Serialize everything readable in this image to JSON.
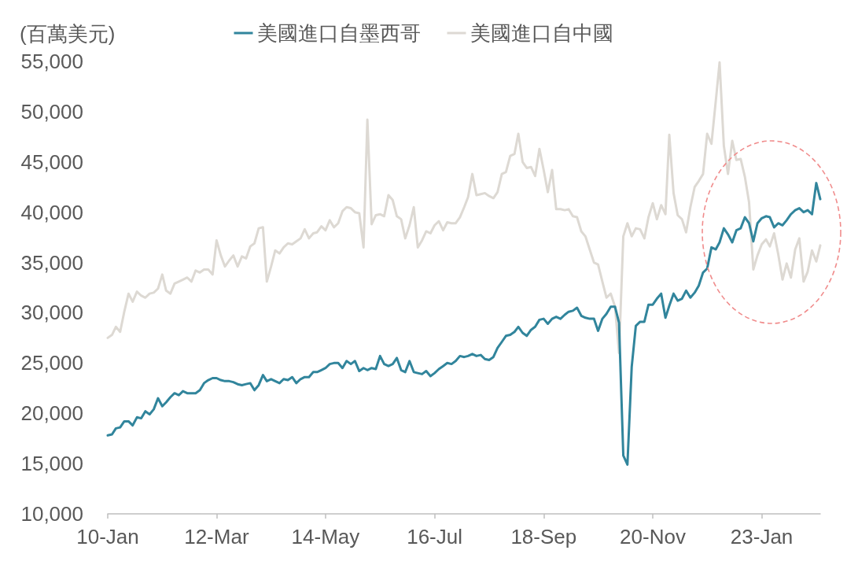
{
  "chart_data": {
    "type": "line",
    "ylabel": "(百萬美元)",
    "x": [
      "2010-01",
      "2010-02",
      "2010-03",
      "2010-04",
      "2010-05",
      "2010-06",
      "2010-07",
      "2010-08",
      "2010-09",
      "2010-10",
      "2010-11",
      "2010-12",
      "2011-01",
      "2011-02",
      "2011-03",
      "2011-04",
      "2011-05",
      "2011-06",
      "2011-07",
      "2011-08",
      "2011-09",
      "2011-10",
      "2011-11",
      "2011-12",
      "2012-01",
      "2012-02",
      "2012-03",
      "2012-04",
      "2012-05",
      "2012-06",
      "2012-07",
      "2012-08",
      "2012-09",
      "2012-10",
      "2012-11",
      "2012-12",
      "2013-01",
      "2013-02",
      "2013-03",
      "2013-04",
      "2013-05",
      "2013-06",
      "2013-07",
      "2013-08",
      "2013-09",
      "2013-10",
      "2013-11",
      "2013-12",
      "2014-01",
      "2014-02",
      "2014-03",
      "2014-04",
      "2014-05",
      "2014-06",
      "2014-07",
      "2014-08",
      "2014-09",
      "2014-10",
      "2014-11",
      "2014-12",
      "2015-01",
      "2015-02",
      "2015-03",
      "2015-04",
      "2015-05",
      "2015-06",
      "2015-07",
      "2015-08",
      "2015-09",
      "2015-10",
      "2015-11",
      "2015-12",
      "2016-01",
      "2016-02",
      "2016-03",
      "2016-04",
      "2016-05",
      "2016-06",
      "2016-07",
      "2016-08",
      "2016-09",
      "2016-10",
      "2016-11",
      "2016-12",
      "2017-01",
      "2017-02",
      "2017-03",
      "2017-04",
      "2017-05",
      "2017-06",
      "2017-07",
      "2017-08",
      "2017-09",
      "2017-10",
      "2017-11",
      "2017-12",
      "2018-01",
      "2018-02",
      "2018-03",
      "2018-04",
      "2018-05",
      "2018-06",
      "2018-07",
      "2018-08",
      "2018-09",
      "2018-10",
      "2018-11",
      "2018-12",
      "2019-01",
      "2019-02",
      "2019-03",
      "2019-04",
      "2019-05",
      "2019-06",
      "2019-07",
      "2019-08",
      "2019-09",
      "2019-10",
      "2019-11",
      "2019-12",
      "2020-01",
      "2020-02",
      "2020-03",
      "2020-04",
      "2020-05",
      "2020-06",
      "2020-07",
      "2020-08",
      "2020-09",
      "2020-10",
      "2020-11",
      "2020-12",
      "2021-01",
      "2021-02",
      "2021-03",
      "2021-04",
      "2021-05",
      "2021-06",
      "2021-07",
      "2021-08",
      "2021-09",
      "2021-10",
      "2021-11",
      "2021-12",
      "2022-01",
      "2022-02",
      "2022-03",
      "2022-04",
      "2022-05",
      "2022-06",
      "2022-07",
      "2022-08",
      "2022-09",
      "2022-10",
      "2022-11",
      "2022-12",
      "2023-01",
      "2023-02",
      "2023-03",
      "2023-04",
      "2023-05",
      "2023-06",
      "2023-07",
      "2023-08",
      "2023-09",
      "2023-10",
      "2023-11",
      "2023-12",
      "2024-01",
      "2024-02",
      "2024-03"
    ],
    "series": [
      {
        "name": "美國進口自墨西哥",
        "color": "#31859c",
        "values": [
          17800,
          17900,
          18500,
          18600,
          19200,
          19200,
          18800,
          19600,
          19500,
          20200,
          19900,
          20400,
          21500,
          20700,
          21100,
          21600,
          22000,
          21800,
          22200,
          22000,
          22000,
          22000,
          22300,
          23000,
          23300,
          23500,
          23500,
          23300,
          23200,
          23200,
          23100,
          22900,
          22800,
          22900,
          23000,
          22300,
          22800,
          23800,
          23200,
          23400,
          23200,
          23000,
          23400,
          23300,
          23600,
          23000,
          23400,
          23600,
          23600,
          24100,
          24100,
          24300,
          24500,
          24900,
          25000,
          25000,
          24500,
          25200,
          24900,
          25200,
          24200,
          24500,
          24300,
          24500,
          24400,
          25700,
          24900,
          24700,
          24900,
          25500,
          24300,
          24100,
          25200,
          24100,
          24000,
          23900,
          24200,
          23700,
          24000,
          24400,
          24700,
          25000,
          24900,
          25200,
          25700,
          25600,
          25700,
          25900,
          25700,
          25800,
          25400,
          25300,
          25600,
          26500,
          27100,
          27700,
          27800,
          28100,
          28600,
          28000,
          27700,
          28300,
          28600,
          29300,
          29400,
          28900,
          29400,
          29600,
          29400,
          29800,
          30100,
          30200,
          30500,
          29700,
          29500,
          29400,
          29400,
          28200,
          29400,
          29900,
          30600,
          30600,
          29000,
          15800,
          14900,
          24600,
          28700,
          29100,
          29100,
          30800,
          30800,
          31400,
          31900,
          29500,
          30700,
          31900,
          31200,
          31400,
          32200,
          31500,
          32000,
          32700,
          34000,
          34400,
          36500,
          36300,
          37000,
          38400,
          37800,
          37000,
          38200,
          38400,
          39500,
          38900,
          37100,
          38900,
          39400,
          39600,
          39500,
          38500,
          38900,
          38700,
          39200,
          39800,
          40200,
          40400,
          40000,
          40200,
          39800,
          42900,
          41300
        ]
      },
      {
        "name": "美國進口自中國",
        "color": "#ddd9d3",
        "values": [
          27500,
          27800,
          28600,
          28100,
          30100,
          31900,
          31100,
          32100,
          31700,
          31500,
          31900,
          32000,
          32400,
          33800,
          32200,
          31900,
          32900,
          33100,
          33300,
          33500,
          33100,
          34200,
          34000,
          34300,
          34300,
          33800,
          37200,
          35700,
          34600,
          35200,
          35700,
          34600,
          35600,
          35400,
          36600,
          36900,
          38400,
          38500,
          33100,
          34600,
          36200,
          35900,
          36500,
          36900,
          36800,
          37100,
          37400,
          38300,
          37400,
          37900,
          38000,
          38600,
          38200,
          39200,
          38500,
          38900,
          40100,
          40500,
          40400,
          40000,
          39900,
          36500,
          49200,
          38800,
          39700,
          39800,
          39600,
          41700,
          41200,
          39600,
          39300,
          37400,
          38700,
          40500,
          36500,
          37200,
          38100,
          37900,
          38700,
          39100,
          38200,
          39000,
          38900,
          38900,
          39500,
          40500,
          41500,
          43800,
          41700,
          41800,
          41900,
          41600,
          41400,
          42000,
          43800,
          44000,
          45600,
          45800,
          47800,
          45000,
          44400,
          44500,
          43600,
          46300,
          44200,
          42000,
          44200,
          40300,
          40300,
          40200,
          40300,
          39600,
          39500,
          38100,
          37600,
          36300,
          35000,
          34800,
          33100,
          31500,
          31900,
          30600,
          26000,
          37600,
          38900,
          37600,
          38400,
          38300,
          37400,
          39500,
          40900,
          39300,
          40700,
          39800,
          47700,
          41900,
          39700,
          39300,
          38000,
          40500,
          42500,
          43100,
          43800,
          47800,
          46800,
          51000,
          54900,
          46600,
          43800,
          47100,
          45200,
          45300,
          43500,
          41000,
          34300,
          35700,
          36800,
          37300,
          36600,
          37900,
          35800,
          33300,
          34900,
          33500,
          36300,
          37400,
          33100,
          34100,
          36200,
          35100,
          36700
        ]
      }
    ],
    "xlim": [
      "2010-01",
      "2024-03"
    ],
    "xticks": [
      {
        "value": "2010-01",
        "label": "10-Jan"
      },
      {
        "value": "2012-03",
        "label": "12-Mar"
      },
      {
        "value": "2014-05",
        "label": "14-May"
      },
      {
        "value": "2016-07",
        "label": "16-Jul"
      },
      {
        "value": "2018-09",
        "label": "18-Sep"
      },
      {
        "value": "2020-11",
        "label": "20-Nov"
      },
      {
        "value": "2023-01",
        "label": "23-Jan"
      }
    ],
    "ylim": [
      10000,
      55000
    ],
    "yticks": [
      {
        "value": 10000,
        "label": "10,000"
      },
      {
        "value": 15000,
        "label": "15,000"
      },
      {
        "value": 20000,
        "label": "20,000"
      },
      {
        "value": 25000,
        "label": "25,000"
      },
      {
        "value": 30000,
        "label": "30,000"
      },
      {
        "value": 35000,
        "label": "35,000"
      },
      {
        "value": 40000,
        "label": "40,000"
      },
      {
        "value": 45000,
        "label": "45,000"
      },
      {
        "value": 50000,
        "label": "50,000"
      },
      {
        "value": 55000,
        "label": "55,000"
      }
    ],
    "grid": false,
    "legend": "top",
    "marker": "none",
    "line_style": "solid"
  }
}
